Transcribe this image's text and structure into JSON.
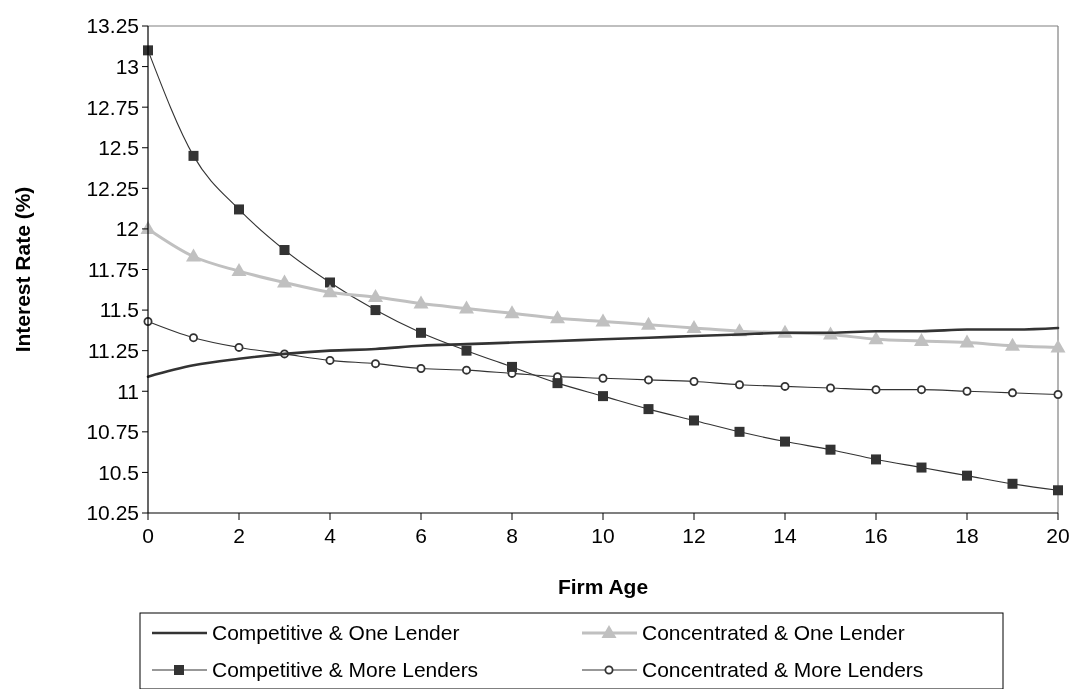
{
  "chart_data": {
    "type": "line",
    "xlabel": "Firm Age",
    "ylabel": "Interest Rate (%)",
    "x": [
      0,
      1,
      2,
      3,
      4,
      5,
      6,
      7,
      8,
      9,
      10,
      11,
      12,
      13,
      14,
      15,
      16,
      17,
      18,
      19,
      20
    ],
    "xlim": [
      0,
      20
    ],
    "xticks": [
      0,
      2,
      4,
      6,
      8,
      10,
      12,
      14,
      16,
      18,
      20
    ],
    "ylim": [
      10.25,
      13.25
    ],
    "yticks": [
      10.25,
      10.5,
      10.75,
      11,
      11.25,
      11.5,
      11.75,
      12,
      12.25,
      12.5,
      12.75,
      13,
      13.25
    ],
    "grid": false,
    "legend": "bottom",
    "series": [
      {
        "name": "Competitive & One Lender",
        "color": "#333333",
        "marker": "none",
        "values": [
          11.09,
          11.16,
          11.2,
          11.23,
          11.25,
          11.26,
          11.28,
          11.29,
          11.3,
          11.31,
          11.32,
          11.33,
          11.34,
          11.35,
          11.36,
          11.36,
          11.37,
          11.37,
          11.38,
          11.38,
          11.39
        ]
      },
      {
        "name": "Concentrated & One Lender",
        "color": "#c0c0c0",
        "marker": "triangle",
        "values": [
          12.0,
          11.83,
          11.74,
          11.67,
          11.61,
          11.58,
          11.54,
          11.51,
          11.48,
          11.45,
          11.43,
          11.41,
          11.39,
          11.37,
          11.36,
          11.35,
          11.32,
          11.31,
          11.3,
          11.28,
          11.27
        ]
      },
      {
        "name": "Competitive & More Lenders",
        "color": "#333333",
        "marker": "square",
        "values": [
          13.1,
          12.45,
          12.12,
          11.87,
          11.67,
          11.5,
          11.36,
          11.25,
          11.15,
          11.05,
          10.97,
          10.89,
          10.82,
          10.75,
          10.69,
          10.64,
          10.58,
          10.53,
          10.48,
          10.43,
          10.39
        ]
      },
      {
        "name": "Concentrated & More Lenders",
        "color": "#333333",
        "marker": "circle",
        "values": [
          11.43,
          11.33,
          11.27,
          11.23,
          11.19,
          11.17,
          11.14,
          11.13,
          11.11,
          11.09,
          11.08,
          11.07,
          11.06,
          11.04,
          11.03,
          11.02,
          11.01,
          11.01,
          11.0,
          10.99,
          10.98
        ]
      }
    ]
  }
}
